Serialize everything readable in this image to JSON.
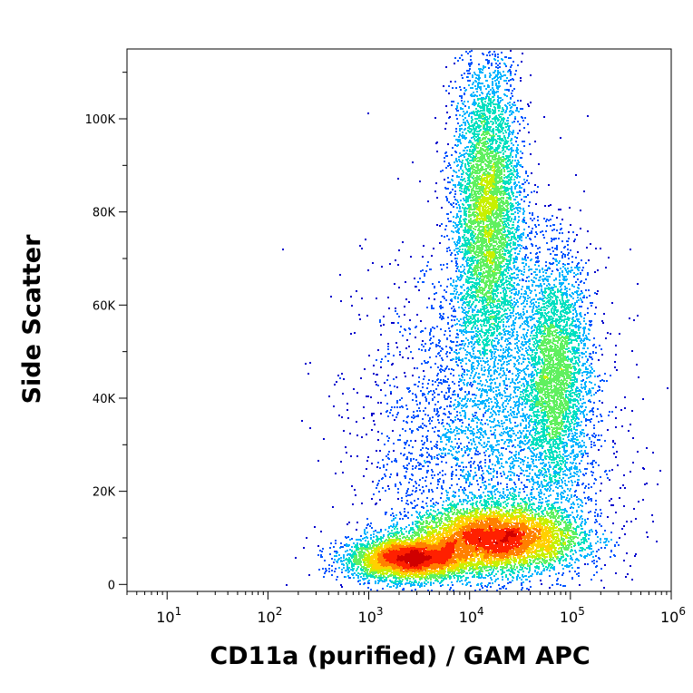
{
  "chart_data": {
    "type": "scatter",
    "subtype": "flow-cytometry-density-dot-plot",
    "title": "",
    "xlabel": "CD11a (purified) / GAM APC",
    "ylabel": "Side Scatter",
    "x_scale": "log",
    "y_scale": "linear",
    "xlim": [
      4,
      1000000
    ],
    "ylim": [
      -1500,
      115000
    ],
    "grid": false,
    "legend": "none",
    "density_colormap": [
      "#0000cd",
      "#0055ff",
      "#00b4ff",
      "#00e0c0",
      "#60f060",
      "#c8f000",
      "#ffd000",
      "#ff8000",
      "#ff2000",
      "#d00000"
    ],
    "x_ticks": [
      {
        "value": 10,
        "base": "10",
        "exp": "1"
      },
      {
        "value": 100,
        "base": "10",
        "exp": "2"
      },
      {
        "value": 1000,
        "base": "10",
        "exp": "3"
      },
      {
        "value": 10000,
        "base": "10",
        "exp": "4"
      },
      {
        "value": 100000,
        "base": "10",
        "exp": "5"
      },
      {
        "value": 1000000,
        "base": "10",
        "exp": "6"
      }
    ],
    "y_ticks": [
      {
        "value": 0,
        "label": "0"
      },
      {
        "value": 20000,
        "label": "20K"
      },
      {
        "value": 40000,
        "label": "40K"
      },
      {
        "value": 60000,
        "label": "60K"
      },
      {
        "value": 80000,
        "label": "80K"
      },
      {
        "value": 100000,
        "label": "100K"
      }
    ],
    "populations": [
      {
        "id": "low-sidescatter-negative",
        "x_center": 2500,
        "y_center": 5500,
        "x_spread_log": 0.3,
        "y_spread": 2200,
        "weight": 0.17
      },
      {
        "id": "low-sidescatter-positive",
        "x_center": 18000,
        "y_center": 10000,
        "x_spread_log": 0.42,
        "y_spread": 3500,
        "weight": 0.33
      },
      {
        "id": "high-sidescatter-mid",
        "x_center": 15000,
        "y_center": 80000,
        "x_spread_log": 0.17,
        "y_spread": 17000,
        "weight": 0.22
      },
      {
        "id": "mid-sidescatter-bright",
        "x_center": 70000,
        "y_center": 45000,
        "x_spread_log": 0.17,
        "y_spread": 13000,
        "weight": 0.13
      },
      {
        "id": "diffuse-background",
        "x_center": 15000,
        "y_center": 30000,
        "x_spread_log": 0.6,
        "y_spread": 20000,
        "weight": 0.15
      }
    ]
  }
}
